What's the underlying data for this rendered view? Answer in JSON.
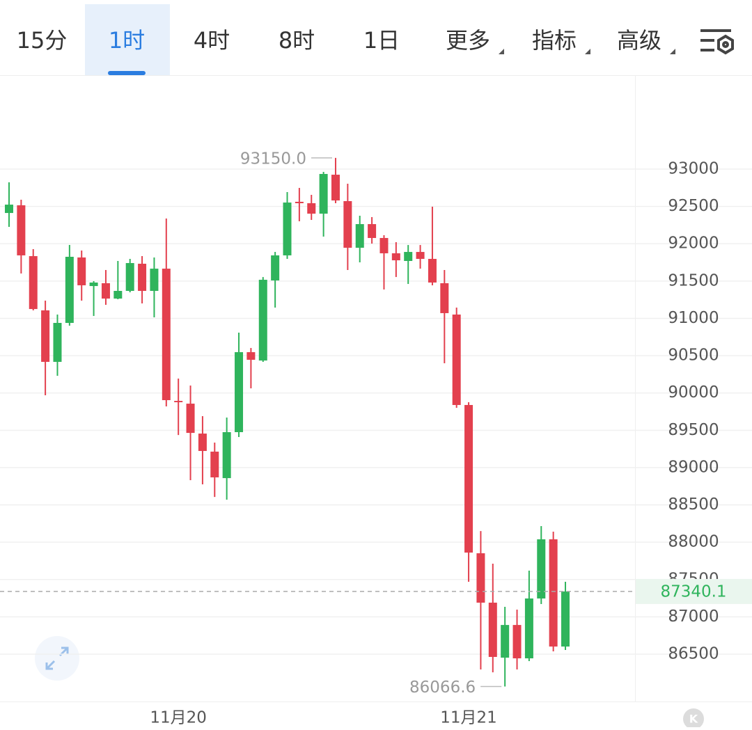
{
  "tabs": {
    "items": [
      "15分",
      "1时",
      "4时",
      "8时",
      "1日",
      "更多",
      "指标",
      "高级"
    ],
    "selected": 1
  },
  "corner_badge": "K",
  "chart_data": {
    "type": "candlestick",
    "categories": [
      null,
      null,
      null,
      null,
      null,
      null,
      null,
      null,
      null,
      null,
      null,
      null,
      null,
      null,
      "11月20",
      null,
      null,
      null,
      null,
      null,
      null,
      null,
      null,
      null,
      null,
      null,
      null,
      null,
      null,
      null,
      null,
      null,
      null,
      null,
      null,
      null,
      null,
      null,
      "11月21",
      null,
      null,
      null,
      null,
      null,
      null,
      null,
      null
    ],
    "open": [
      92412,
      92515,
      91834,
      91107,
      90417,
      90939,
      91816,
      91433,
      91471,
      91265,
      91368,
      91732,
      91368,
      91666,
      89894,
      89857,
      89456,
      89214,
      88859,
      89475,
      90547,
      90435,
      91508,
      91844,
      92562,
      92543,
      92403,
      92925,
      92571,
      91946,
      92263,
      92077,
      91872,
      91769,
      91890,
      91797,
      91471,
      91051,
      89839,
      87852,
      87190,
      86453,
      86891,
      86444,
      87246,
      88039,
      86602
    ],
    "high": [
      92823,
      92590,
      91928,
      91237,
      91051,
      91983,
      91909,
      91499,
      91648,
      91769,
      91797,
      91834,
      91816,
      92338,
      90193,
      90100,
      89689,
      89335,
      89671,
      90808,
      90603,
      91554,
      91890,
      92692,
      92748,
      92655,
      92963,
      93150,
      92804,
      92375,
      92357,
      92114,
      92021,
      91983,
      91983,
      92496,
      91648,
      91144,
      89876,
      88150,
      87712,
      87134,
      87097,
      87619,
      88216,
      88141,
      87470
    ],
    "low": [
      92226,
      91601,
      91107,
      89969,
      90230,
      90902,
      91237,
      91032,
      91181,
      91256,
      91349,
      91200,
      91014,
      89820,
      89437,
      88831,
      88775,
      88607,
      88570,
      89410,
      90062,
      90417,
      91144,
      91797,
      92301,
      92319,
      92095,
      92543,
      91648,
      91750,
      92002,
      91387,
      91554,
      91461,
      91666,
      91443,
      90398,
      89801,
      87470,
      86295,
      86257,
      86066.6,
      86295,
      86407,
      87171,
      86537,
      86556
    ],
    "close": [
      92524,
      91844,
      91125,
      90417,
      90939,
      91825,
      91443,
      91480,
      91265,
      91368,
      91741,
      91368,
      91666,
      89904,
      89876,
      89465,
      89223,
      88869,
      89475,
      90547,
      90445,
      91517,
      91844,
      92552,
      92543,
      92403,
      92935,
      92580,
      91946,
      92263,
      92077,
      91872,
      91778,
      91890,
      91797,
      91480,
      91070,
      89839,
      87861,
      87190,
      86463,
      86891,
      86444,
      87246,
      88039,
      86602,
      87340.1
    ],
    "up_color": "#2fb45c",
    "down_color": "#e3404e",
    "ylim": [
      85866,
      94259
    ],
    "yticks": [
      86500,
      87000,
      87500,
      88000,
      88500,
      89000,
      89500,
      90000,
      90500,
      91000,
      91500,
      92000,
      92500,
      93000
    ],
    "grid": true,
    "max_marker": {
      "value": 93150,
      "label": "93150.0"
    },
    "min_marker": {
      "value": 86066.6,
      "label": "86066.6"
    },
    "last_price": {
      "value": 87340.1,
      "label": "87340.1",
      "color": "#2fb45c"
    }
  }
}
